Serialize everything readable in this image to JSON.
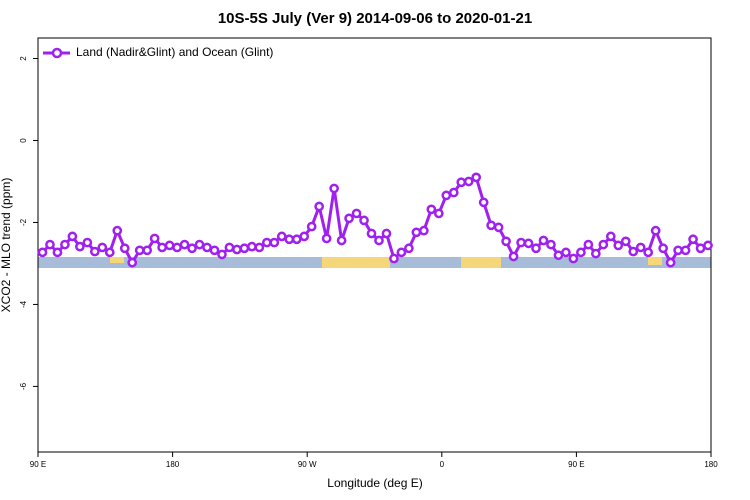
{
  "chart_data": {
    "type": "line",
    "title": "10S-5S July (Ver 9)   2014-09-06 to 2020-01-21",
    "x_label": "Longitude (deg E)",
    "y_label": "XCO2 - MLO trend (ppm)",
    "xlim": [
      90,
      540
    ],
    "ylim": [
      -7.6,
      2.5
    ],
    "xticks": [
      {
        "value": 90,
        "label": "90 E"
      },
      180,
      {
        "value": 270,
        "label": "90 W"
      },
      {
        "value": 360,
        "label": "0"
      },
      {
        "value": 450,
        "label": "90 E"
      },
      {
        "value": 540,
        "label": "180"
      }
    ],
    "yticks": [
      2,
      0,
      -2,
      -4,
      -6
    ],
    "legend": "top-left",
    "x": [
      93,
      98,
      103,
      108,
      113,
      118,
      123,
      128,
      133,
      138,
      143,
      148,
      153,
      158,
      163,
      168,
      173,
      178,
      183,
      188,
      193,
      198,
      203,
      208,
      213,
      218,
      223,
      228,
      233,
      238,
      243,
      248,
      253,
      258,
      263,
      268,
      273,
      278,
      283,
      288,
      293,
      298,
      303,
      308,
      313,
      318,
      323,
      328,
      333,
      338,
      343,
      348,
      353,
      358,
      363,
      368,
      373,
      378,
      383,
      388,
      393,
      398,
      403,
      408,
      413,
      418,
      423,
      428,
      433,
      438,
      443,
      448,
      453,
      458,
      463,
      468,
      473,
      478,
      483,
      488,
      493,
      498,
      503,
      508,
      513,
      518,
      523,
      528,
      533,
      538
    ],
    "series": [
      {
        "name": "Land (Nadir&Glint) and Ocean (Glint)",
        "color": "#a020f0",
        "values": [
          -2.73,
          -2.54,
          -2.73,
          -2.54,
          -2.34,
          -2.59,
          -2.49,
          -2.71,
          -2.61,
          -2.73,
          -2.2,
          -2.63,
          -2.98,
          -2.68,
          -2.68,
          -2.39,
          -2.61,
          -2.56,
          -2.61,
          -2.54,
          -2.63,
          -2.54,
          -2.61,
          -2.68,
          -2.78,
          -2.61,
          -2.66,
          -2.63,
          -2.59,
          -2.61,
          -2.49,
          -2.49,
          -2.34,
          -2.41,
          -2.41,
          -2.34,
          -2.1,
          -1.61,
          -2.39,
          -1.17,
          -2.44,
          -1.9,
          -1.78,
          -1.95,
          -2.27,
          -2.44,
          -2.27,
          -2.88,
          -2.73,
          -2.63,
          -2.24,
          -2.2,
          -1.68,
          -1.78,
          -1.34,
          -1.27,
          -1.02,
          -1.0,
          -0.9,
          -1.51,
          -2.07,
          -2.12,
          -2.46,
          -2.83,
          -2.49,
          -2.51,
          -2.63,
          -2.44,
          -2.54,
          -2.8,
          -2.73,
          -2.88,
          -2.73,
          -2.54,
          -2.76,
          -2.54,
          -2.34,
          -2.56,
          -2.46,
          -2.71,
          -2.61,
          -2.73,
          -2.2,
          -2.63,
          -2.98,
          -2.68,
          -2.68,
          -2.41,
          -2.63,
          -2.56
        ]
      }
    ]
  }
}
